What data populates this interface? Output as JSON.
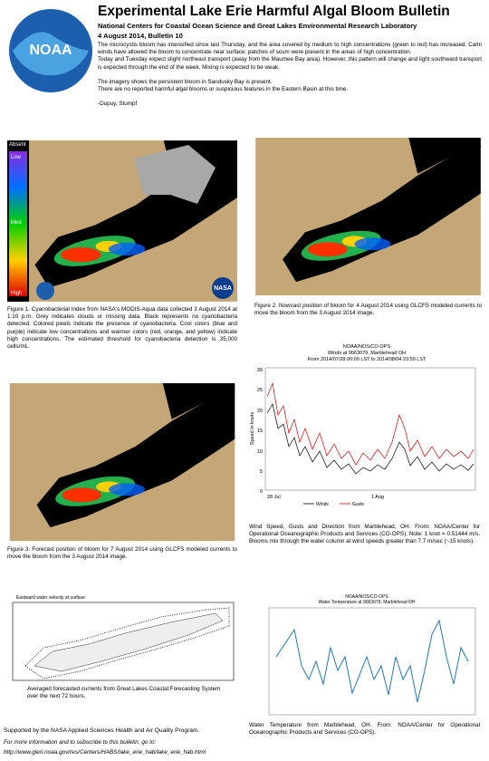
{
  "header": {
    "logo": "NOAA",
    "title": "Experimental Lake Erie Harmful Algal Bloom Bulletin",
    "subtitle": "National Centers for Coastal Ocean Science and Great Lakes Environmental Research Laboratory",
    "date": "4 August 2014, Bulletin 10"
  },
  "body": {
    "paragraphs": [
      "The microcystis bloom has intensified since last Thursday, and the area covered by medium to high concentrations (green to red) has increased. Calm winds have allowed the bloom to concentrate near surface; patches of scum were present in the areas of high concentration.",
      "Today and Tuesday expect slight northeast transport (away from the Maumee Bay area). However, this pattern will change and light southward transport is expected through the end of the week. Mixing is expected to be weak.",
      "The imagery shows the persistent bloom in Sandusky Bay is present.",
      "There are no reported harmful algal blooms or suspicious features in the Eastern Basin at this time."
    ],
    "signature": "-Dupuy, Stumpf"
  },
  "figure1": {
    "legend": [
      "Absent",
      "Low",
      "Med",
      "High"
    ],
    "logo": "NASA",
    "caption": "Figure 1. Cyanobacterial Index from NASA's MODIS-Aqua data collected 3 August 2014 at 1:10 p.m. Grey indicates clouds or missing data. Black represents no cyanobacteria detected. Colored pixels indicate the presence of cyanobacteria. Cool colors (blue and purple) indicate low concentrations and warmer colors (red, orange, and yellow) indicate high concentrations. The estimated threshold for cyanobacteria detection is 35,000 cells/mL."
  },
  "figure2": {
    "caption": "Figure 2. Nowcast position of bloom for 4 August 2014 using GLCFS modeled currents to move the bloom from the 3 August 2014 image."
  },
  "figure3": {
    "caption": "Figure 3. Forecast position of bloom for 7 August 2014 using GLCFS modeled currents to move the bloom from the 3 August 2014 image."
  },
  "wind": {
    "title": [
      "NOAA/NOS/CO-OPS",
      "Winds at 9063079, Marblehead OH",
      "From 2014/07/28 00:00 LST to 2014/08/04 23:59 LST"
    ],
    "ylabel": "Speed in knots",
    "yticks": [
      "30",
      "25",
      "20",
      "15",
      "10",
      "5",
      "0"
    ],
    "xticks": [
      "28 Jul",
      "1 Aug"
    ],
    "legend": [
      "Winds",
      "Gusts"
    ],
    "caption": "Wind Speed, Gusts and Direction from Marblehead, OH. From: NOAA/Center for Operational Oceanographic Products and Services (CO-OPS). Note: 1 knot = 0.51444 m/s. Blooms mix through the water column at wind speeds greater than 7.7 m/sec (~15 knots)."
  },
  "currents": {
    "title": "Eastward water velocity at surface",
    "caption": "Averaged forecasted currents from Great Lakes Coastal Forecasting System over the next 72 hours."
  },
  "watertemp": {
    "title": [
      "NOAA/NOS/CO-OPS",
      "Water Temperature at 9063079, Marblehead OH"
    ],
    "caption": "Water Temperature from Marblehead, OH. From: NOAA/Center for Operational Oceanographic Products and Services (CO-OPS)."
  },
  "footer": {
    "support": "Supported by the NASA Applied Sciences Health and Air Quality Program.",
    "info": "For more information and to subscribe to this bulletin, go to:",
    "url": "http://www.glerl.noaa.gov/res/Centers/HABS/lake_erie_hab/lake_erie_hab.html"
  }
}
